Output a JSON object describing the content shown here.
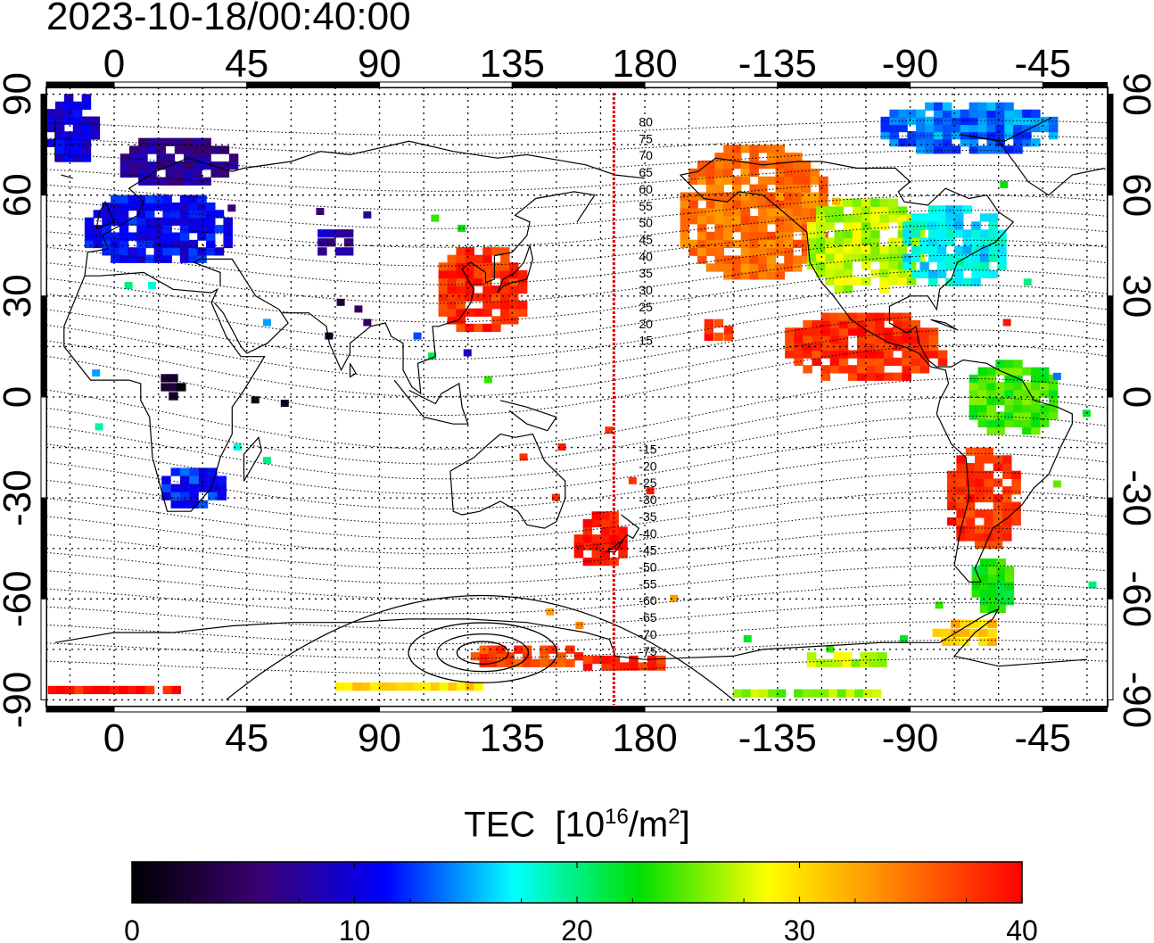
{
  "timestamp": "2023-10-18/00:40:00",
  "map": {
    "lon_tick_labels": [
      "0",
      "45",
      "90",
      "135",
      "180",
      "-135",
      "-90",
      "-45"
    ],
    "lon_tick_values": [
      0,
      45,
      90,
      135,
      180,
      225,
      270,
      315
    ],
    "lat_tick_labels": [
      "90",
      "60",
      "30",
      "0",
      "-30",
      "-60",
      "-90"
    ],
    "lat_tick_values": [
      90,
      60,
      30,
      0,
      -30,
      -60,
      -90
    ],
    "lon_range": [
      -23,
      337
    ],
    "lat_range": [
      -92,
      92
    ],
    "marker_meridian_lon": 169.5,
    "marker_color": "#e00000",
    "contour_labels_north": [
      "80",
      "75",
      "70",
      "65",
      "60",
      "55",
      "50",
      "45",
      "40",
      "35",
      "30",
      "25",
      "20",
      "15"
    ],
    "contour_labels_south": [
      "-15",
      "-20",
      "-25",
      "-30",
      "-35",
      "-40",
      "-45",
      "-50",
      "-55",
      "-60",
      "-65",
      "-70",
      "-75"
    ]
  },
  "colorbar": {
    "title": "TEC",
    "unit_prefix": "[10",
    "unit_exp": "16",
    "unit_mid": "/m",
    "unit_exp2": "2",
    "unit_suffix": "]",
    "ticks": [
      "0",
      "10",
      "20",
      "30",
      "40"
    ],
    "range": [
      0,
      40
    ],
    "stops": [
      "#000000",
      "#3a0070",
      "#0000ff",
      "#00ffff",
      "#00e000",
      "#ffff00",
      "#ff8000",
      "#ff0000"
    ]
  },
  "tec_regions": [
    {
      "lon": -14,
      "lat": 80,
      "w": 18,
      "h": 20,
      "tec": 10
    },
    {
      "lon": 22,
      "lat": 70,
      "w": 40,
      "h": 14,
      "tec": 7
    },
    {
      "lon": 15,
      "lat": 50,
      "w": 50,
      "h": 20,
      "tec": 11
    },
    {
      "lon": 75,
      "lat": 46,
      "w": 12,
      "h": 8,
      "tec": 8
    },
    {
      "lon": 125,
      "lat": 32,
      "w": 30,
      "h": 25,
      "tec": 38
    },
    {
      "lon": 20,
      "lat": 3,
      "w": 8,
      "h": 8,
      "tec": 2
    },
    {
      "lon": 27,
      "lat": -27,
      "w": 22,
      "h": 12,
      "tec": 12
    },
    {
      "lon": 165,
      "lat": -42,
      "w": 18,
      "h": 16,
      "tec": 39
    },
    {
      "lon": 140,
      "lat": -77,
      "w": 38,
      "h": 6,
      "tec": 37
    },
    {
      "lon": 173,
      "lat": -79,
      "w": 28,
      "h": 4,
      "tec": 38
    },
    {
      "lon": 217,
      "lat": 55,
      "w": 50,
      "h": 40,
      "tec": 35
    },
    {
      "lon": 255,
      "lat": 45,
      "w": 40,
      "h": 28,
      "tec": 27
    },
    {
      "lon": 285,
      "lat": 45,
      "w": 35,
      "h": 24,
      "tec": 17
    },
    {
      "lon": 290,
      "lat": 80,
      "w": 60,
      "h": 15,
      "tec": 14
    },
    {
      "lon": 255,
      "lat": 15,
      "w": 55,
      "h": 20,
      "tec": 38
    },
    {
      "lon": 305,
      "lat": 0,
      "w": 30,
      "h": 22,
      "tec": 24
    },
    {
      "lon": 295,
      "lat": -30,
      "w": 25,
      "h": 30,
      "tec": 38
    },
    {
      "lon": 298,
      "lat": -56,
      "w": 14,
      "h": 16,
      "tec": 23
    },
    {
      "lon": 290,
      "lat": -70,
      "w": 25,
      "h": 8,
      "tec": 31
    },
    {
      "lon": 250,
      "lat": -78,
      "w": 30,
      "h": 4,
      "tec": 27
    },
    {
      "lon": 0,
      "lat": -87,
      "w": 45,
      "h": 3,
      "tec": 39
    },
    {
      "lon": 100,
      "lat": -86,
      "w": 50,
      "h": 3,
      "tec": 30
    },
    {
      "lon": 235,
      "lat": -88,
      "w": 50,
      "h": 3,
      "tec": 26
    },
    {
      "lon": 205,
      "lat": 20,
      "w": 10,
      "h": 6,
      "tec": 38
    }
  ],
  "tec_points": [
    {
      "lon": 40,
      "lat": 56,
      "tec": 6
    },
    {
      "lon": 70,
      "lat": 55,
      "tec": 6
    },
    {
      "lon": 86,
      "lat": 54,
      "tec": 7
    },
    {
      "lon": 52,
      "lat": 22,
      "tec": 15
    },
    {
      "lon": 73,
      "lat": 18,
      "tec": 2
    },
    {
      "lon": 77,
      "lat": 28,
      "tec": 3
    },
    {
      "lon": 83,
      "lat": 26,
      "tec": 5
    },
    {
      "lon": 86,
      "lat": 22,
      "tec": 5
    },
    {
      "lon": 109,
      "lat": 53,
      "tec": 24
    },
    {
      "lon": 118,
      "lat": 50,
      "tec": 23
    },
    {
      "lon": 103,
      "lat": 18,
      "tec": 13
    },
    {
      "lon": 108,
      "lat": 12,
      "tec": 21
    },
    {
      "lon": 120,
      "lat": 13,
      "tec": 9
    },
    {
      "lon": 127,
      "lat": 5,
      "tec": 24
    },
    {
      "lon": 48,
      "lat": -1,
      "tec": 2
    },
    {
      "lon": 58,
      "lat": -2,
      "tec": 2
    },
    {
      "lon": -6,
      "lat": 7,
      "tec": 15
    },
    {
      "lon": -5,
      "lat": -9,
      "tec": 19
    },
    {
      "lon": 42,
      "lat": -15,
      "tec": 18
    },
    {
      "lon": 52,
      "lat": -19,
      "tec": 20
    },
    {
      "lon": 139,
      "lat": -18,
      "tec": 38
    },
    {
      "lon": 150,
      "lat": -30,
      "tec": 38
    },
    {
      "lon": 152,
      "lat": -15,
      "tec": 39
    },
    {
      "lon": 168,
      "lat": -10,
      "tec": 38
    },
    {
      "lon": 176,
      "lat": -25,
      "tec": 38
    },
    {
      "lon": 182,
      "lat": -28,
      "tec": 39
    },
    {
      "lon": 148,
      "lat": -64,
      "tec": 33
    },
    {
      "lon": 158,
      "lat": -68,
      "tec": 34
    },
    {
      "lon": 190,
      "lat": -60,
      "tec": 33
    },
    {
      "lon": 215,
      "lat": -72,
      "tec": 22
    },
    {
      "lon": 243,
      "lat": -75,
      "tec": 24
    },
    {
      "lon": 268,
      "lat": -72,
      "tec": 22
    },
    {
      "lon": 287,
      "lat": 40,
      "tec": 20
    },
    {
      "lon": 310,
      "lat": 34,
      "tec": 20
    },
    {
      "lon": 303,
      "lat": 22,
      "tec": 39
    },
    {
      "lon": 320,
      "lat": 6,
      "tec": 14
    },
    {
      "lon": 330,
      "lat": -5,
      "tec": 22
    },
    {
      "lon": 320,
      "lat": -26,
      "tec": 25
    },
    {
      "lon": 332,
      "lat": -56,
      "tec": 20
    },
    {
      "lon": 280,
      "lat": -62,
      "tec": 24
    },
    {
      "lon": 245,
      "lat": 58,
      "tec": 32
    },
    {
      "lon": 302,
      "lat": 63,
      "tec": 23
    },
    {
      "lon": 30,
      "lat": 70,
      "tec": 10
    },
    {
      "lon": 5,
      "lat": 33,
      "tec": 20
    },
    {
      "lon": 13,
      "lat": 33,
      "tec": 18
    }
  ]
}
